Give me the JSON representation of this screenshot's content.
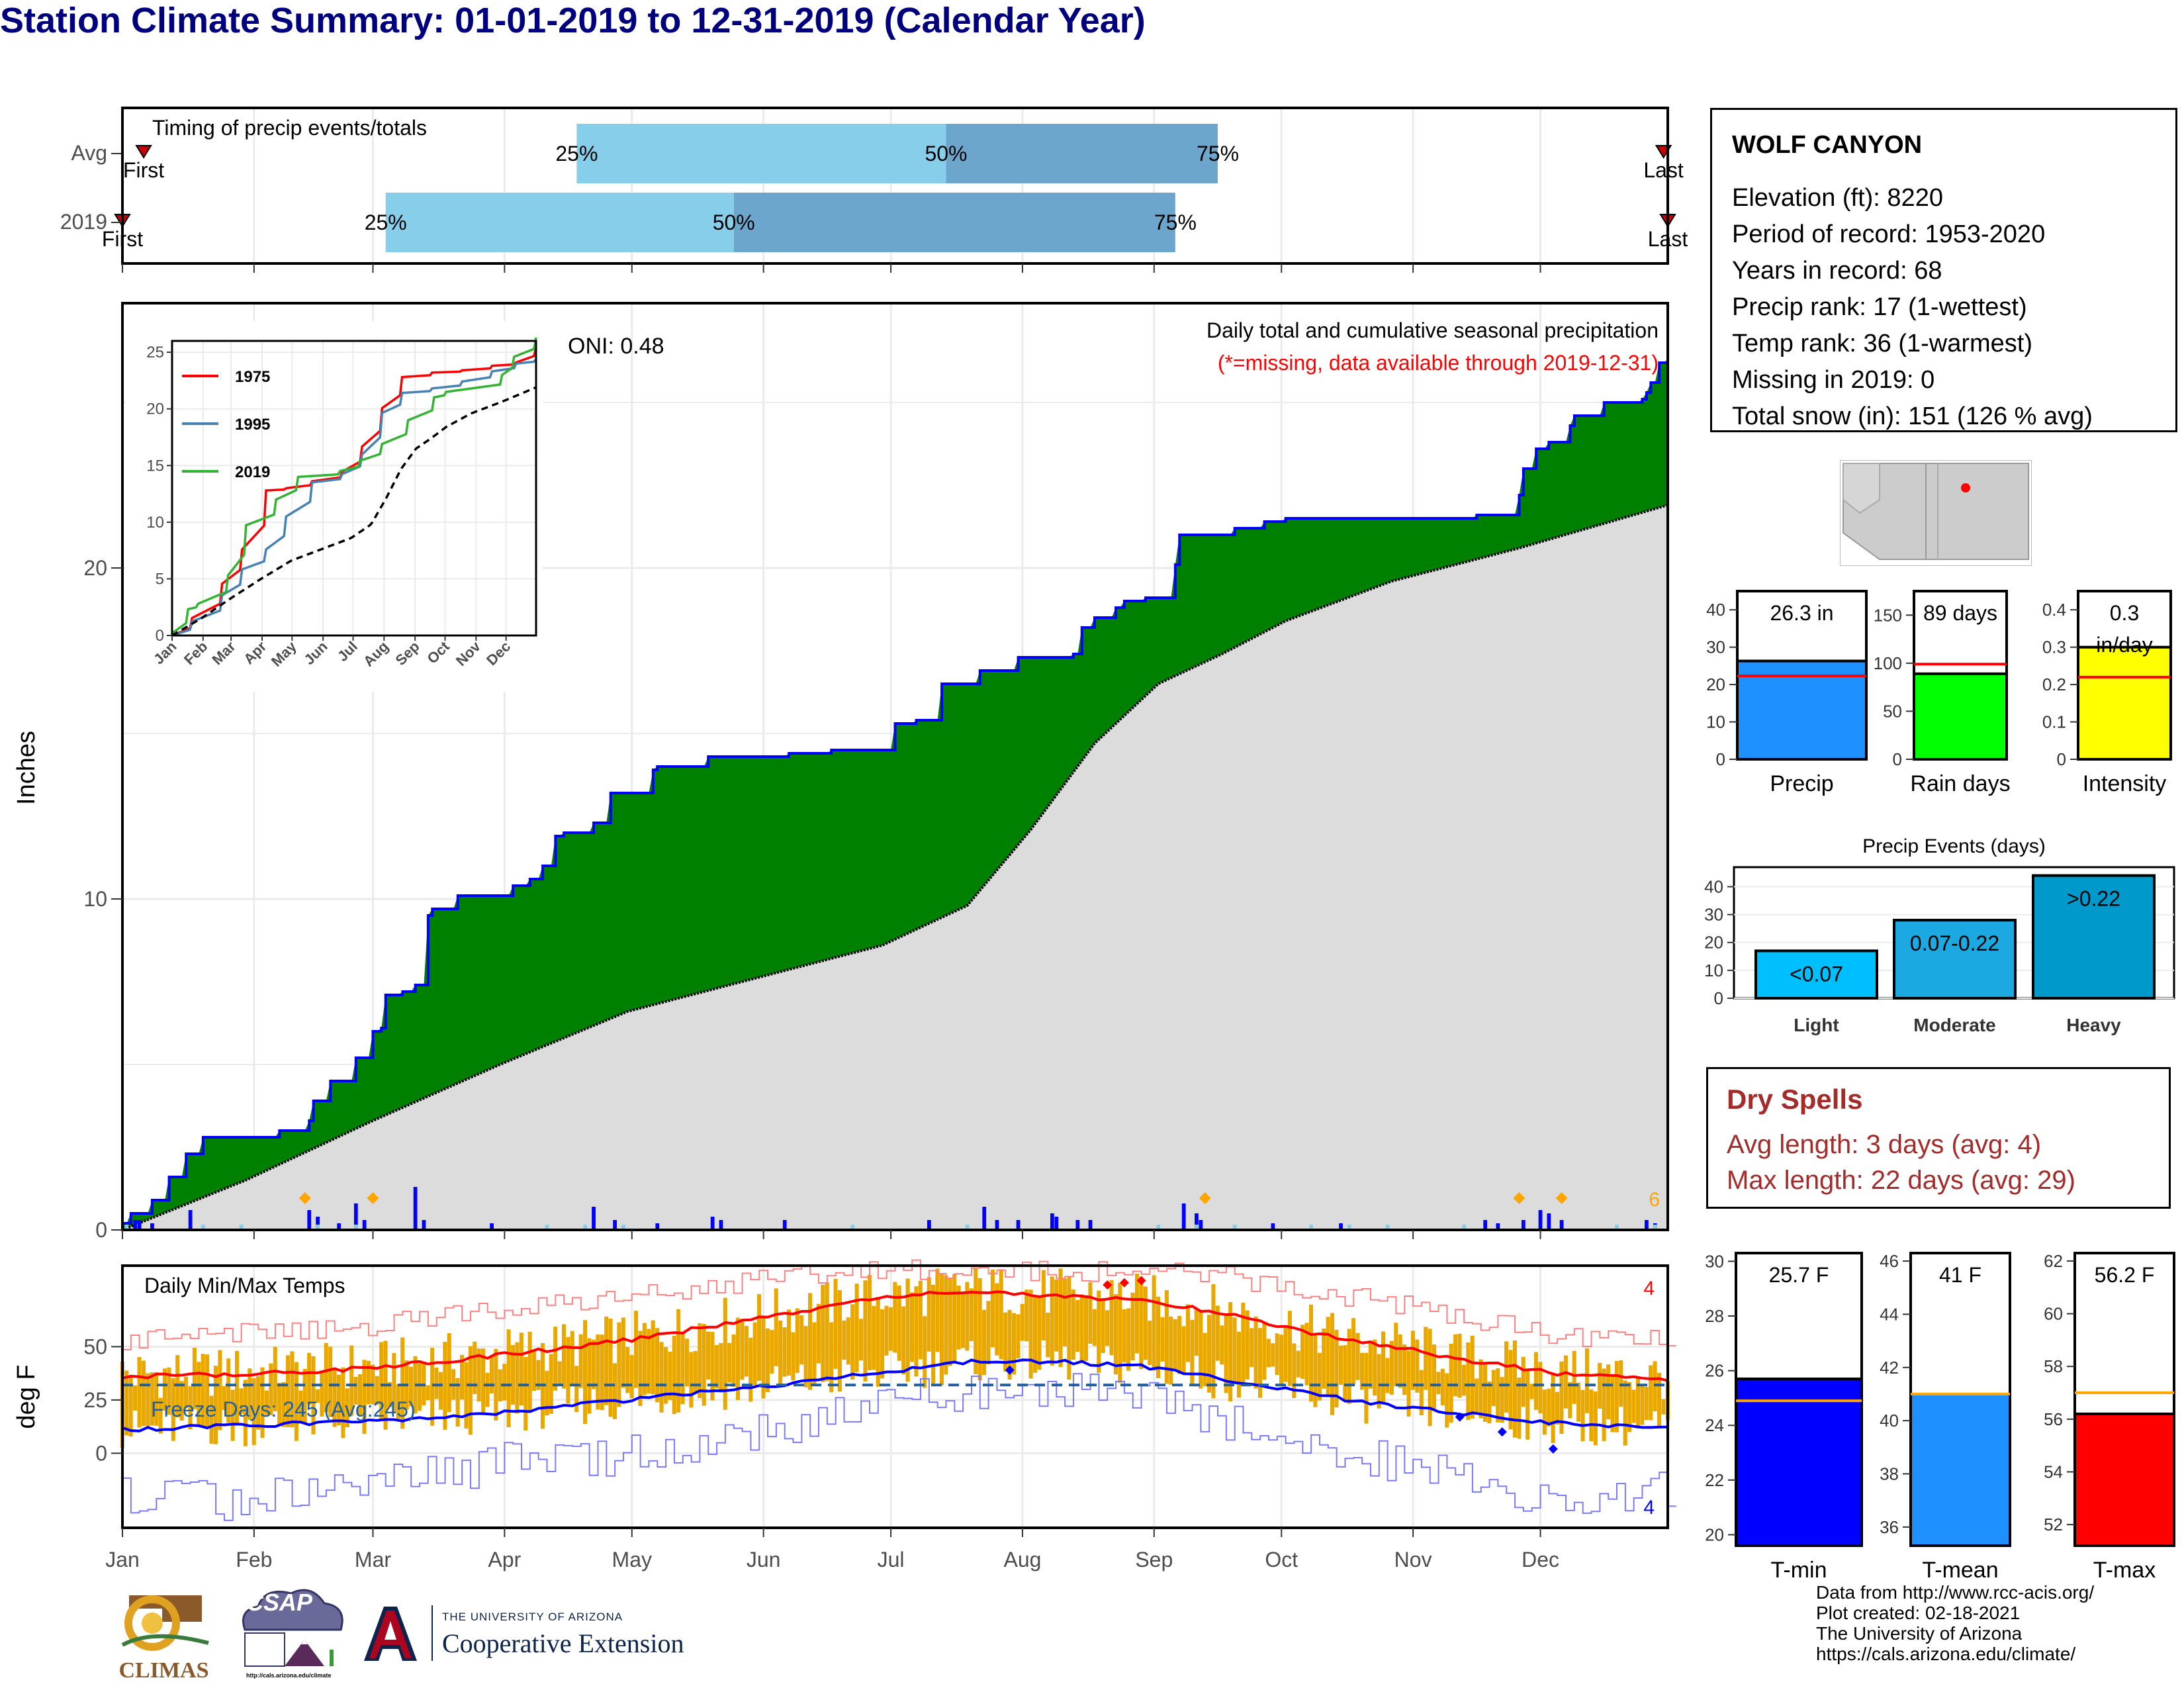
{
  "title": "Station Climate Summary: 01-01-2019 to 12-31-2019 (Calendar Year)",
  "station": {
    "name": "WOLF CANYON",
    "lines": [
      "Elevation (ft): 8220",
      "Period of record: 1953-2020",
      "Years in record: 68",
      "Precip rank: 17 (1-wettest)",
      "Temp rank: 36 (1-warmest)",
      "Missing in 2019: 0",
      "Total snow (in): 151 (126 % avg)"
    ]
  },
  "dry_spells": {
    "title": "Dry Spells",
    "avg": "Avg length: 3 days (avg: 4)",
    "max": "Max length: 22 days (avg: 29)"
  },
  "credits": {
    "line1": "Data from http://www.rcc-acis.org/",
    "line2": "Plot created: 02-18-2021",
    "line3": "The University of Arizona",
    "line4": "https://cals.arizona.edu/climate/"
  },
  "logos": {
    "climas": "CLIMAS",
    "csap": "CSAP",
    "csap_url": "http://cals.arizona.edu/climate",
    "ua_small": "THE UNIVERSITY OF ARIZONA",
    "ua_big": "Cooperative Extension"
  },
  "colors": {
    "navy_title": "#00007f",
    "green_fill": "#008000",
    "blue_line": "#0000ff",
    "light_blue": "#87ceeb",
    "mid_blue": "#6ca6cd",
    "gray_fill": "#dcdcdc",
    "orange": "#ffa500",
    "gold_bar": "#e8a800",
    "red": "#ff0000"
  },
  "chart_data": [
    {
      "id": "timing",
      "type": "bar",
      "title": "Timing of precip events/totals",
      "ylabels": [
        "Avg",
        "2019"
      ],
      "rows": [
        {
          "label": "Avg",
          "q25": "2019-04-18",
          "q50": "2019-07-14",
          "q75": "2019-09-16",
          "first": "2019-01-06",
          "last": "2019-12-30"
        },
        {
          "label": "2019",
          "q25": "2019-03-04",
          "q50": "2019-05-25",
          "q75": "2019-09-06",
          "first": "2019-01-01",
          "last": "2019-12-31"
        }
      ],
      "quantile_labels": [
        "25%",
        "50%",
        "75%"
      ],
      "first_label": "First",
      "last_label": "Last"
    },
    {
      "id": "precip",
      "type": "area",
      "ylabel": "Inches",
      "yticks": [
        0,
        10,
        20
      ],
      "ylim": [
        0,
        28
      ],
      "xticks": [
        "Jan",
        "Feb",
        "Mar",
        "Apr",
        "May",
        "Jun",
        "Jul",
        "Aug",
        "Sep",
        "Oct",
        "Nov",
        "Dec"
      ],
      "caption": "Daily total and cumulative seasonal precipitation",
      "caption2": "(*=missing, data available through 2019-12-31)",
      "oni": "ONI: 0.48",
      "corner_count": "6",
      "series": [
        {
          "name": "2019 cumulative",
          "x": [
            1,
            3,
            8,
            12,
            16,
            20,
            27,
            38,
            45,
            46,
            50,
            56,
            60,
            62,
            63,
            67,
            70,
            73,
            74,
            75,
            80,
            93,
            97,
            100,
            103,
            105,
            112,
            116,
            126,
            127,
            137,
            139,
            150,
            158,
            168,
            183,
            188,
            194,
            203,
            211,
            212,
            225,
            227,
            230,
            235,
            237,
            242,
            249,
            250,
            262,
            263,
            270,
            275,
            320,
            330,
            331,
            334,
            337,
            342,
            343,
            350,
            359,
            360,
            361,
            363,
            365
          ],
          "y": [
            0.2,
            0.5,
            0.9,
            1.6,
            2.3,
            2.8,
            2.8,
            3.0,
            3.3,
            3.9,
            4.5,
            5.2,
            6.0,
            6.1,
            7.1,
            7.2,
            7.4,
            9.5,
            9.7,
            9.7,
            10.1,
            10.4,
            10.6,
            11.0,
            11.9,
            12.0,
            12.3,
            13.2,
            13.9,
            14.0,
            14.0,
            14.3,
            14.3,
            14.4,
            14.5,
            15.3,
            15.4,
            16.5,
            16.9,
            16.9,
            17.3,
            17.4,
            18.2,
            18.5,
            18.8,
            19.0,
            19.1,
            20.1,
            21.0,
            21.0,
            21.2,
            21.4,
            21.5,
            21.6,
            22.2,
            23.0,
            23.6,
            23.8,
            24.3,
            24.6,
            25.0,
            25.1,
            25.3,
            25.6,
            26.2,
            26.3
          ]
        },
        {
          "name": "Average cumulative",
          "x": [
            1,
            30,
            60,
            90,
            120,
            150,
            180,
            200,
            215,
            230,
            245,
            260,
            275,
            300,
            330,
            365
          ],
          "y": [
            0.0,
            1.5,
            3.3,
            5.0,
            6.6,
            7.6,
            8.6,
            9.8,
            12.1,
            14.7,
            16.5,
            17.4,
            18.4,
            19.6,
            20.6,
            21.9
          ]
        }
      ],
      "daily_bars_in": [
        [
          4,
          0.3
        ],
        [
          5,
          0.3
        ],
        [
          8,
          0.2
        ],
        [
          17,
          0.6
        ],
        [
          45,
          0.6
        ],
        [
          47,
          0.4
        ],
        [
          52,
          0.2
        ],
        [
          56,
          0.8
        ],
        [
          58,
          0.3
        ],
        [
          70,
          1.3
        ],
        [
          72,
          0.3
        ],
        [
          88,
          0.2
        ],
        [
          112,
          0.7
        ],
        [
          117,
          0.3
        ],
        [
          127,
          0.2
        ],
        [
          140,
          0.4
        ],
        [
          142,
          0.3
        ],
        [
          157,
          0.3
        ],
        [
          191,
          0.3
        ],
        [
          204,
          0.7
        ],
        [
          207,
          0.3
        ],
        [
          212,
          0.3
        ],
        [
          220,
          0.5
        ],
        [
          221,
          0.4
        ],
        [
          226,
          0.3
        ],
        [
          229,
          0.3
        ],
        [
          251,
          0.8
        ],
        [
          254,
          0.5
        ],
        [
          255,
          0.3
        ],
        [
          272,
          0.2
        ],
        [
          288,
          0.2
        ],
        [
          322,
          0.3
        ],
        [
          325,
          0.2
        ],
        [
          331,
          0.3
        ],
        [
          335,
          0.6
        ],
        [
          337,
          0.5
        ],
        [
          340,
          0.3
        ],
        [
          360,
          0.3
        ],
        [
          362,
          0.2
        ]
      ],
      "snow_markers": [
        44,
        60,
        256,
        330,
        340
      ]
    },
    {
      "id": "inset",
      "type": "line",
      "xticks": [
        "Jan",
        "Feb",
        "Mar",
        "Apr",
        "May",
        "Jun",
        "Jul",
        "Aug",
        "Sep",
        "Oct",
        "Nov",
        "Dec"
      ],
      "yticks": [
        0,
        5,
        10,
        15,
        20,
        25
      ],
      "ylim": [
        0,
        26
      ],
      "series": [
        {
          "name": "1975",
          "color": "#ff0000",
          "x": [
            1,
            20,
            50,
            70,
            95,
            115,
            140,
            170,
            190,
            210,
            230,
            260,
            290,
            320,
            345,
            365
          ],
          "y": [
            0,
            1.5,
            4.5,
            7.5,
            12.8,
            13.0,
            13.6,
            14.4,
            16.6,
            20.0,
            22.8,
            23.2,
            23.4,
            23.8,
            24.1,
            25.5
          ]
        },
        {
          "name": "1995",
          "color": "#4682b4",
          "x": [
            1,
            20,
            50,
            70,
            95,
            115,
            140,
            170,
            190,
            210,
            230,
            260,
            290,
            320,
            345,
            365
          ],
          "y": [
            0,
            1.2,
            3.5,
            5.8,
            7.6,
            10.5,
            13.5,
            14.2,
            15.9,
            19.6,
            21.4,
            21.8,
            22.4,
            23.3,
            24.0,
            24.4
          ]
        },
        {
          "name": "2019",
          "color": "#32b432",
          "x": [
            1,
            16,
            27,
            56,
            74,
            105,
            127,
            168,
            188,
            211,
            237,
            262,
            275,
            331,
            343,
            365
          ],
          "y": [
            0.2,
            2.3,
            2.8,
            5.2,
            9.7,
            12.0,
            14.0,
            14.5,
            15.4,
            16.9,
            19.0,
            21.0,
            21.5,
            23.0,
            24.6,
            26.3
          ]
        },
        {
          "name": "avg",
          "color": "#000000",
          "x": [
            1,
            30,
            60,
            90,
            120,
            150,
            180,
            200,
            215,
            230,
            245,
            260,
            275,
            300,
            330,
            365
          ],
          "y": [
            0.0,
            1.5,
            3.3,
            5.0,
            6.6,
            7.6,
            8.6,
            9.8,
            12.1,
            14.7,
            16.5,
            17.4,
            18.4,
            19.6,
            20.6,
            21.9
          ]
        }
      ]
    },
    {
      "id": "temps",
      "type": "line",
      "title": "Daily Min/Max Temps",
      "ylabel": "deg F",
      "yticks": [
        0,
        25,
        50
      ],
      "ylim": [
        -35,
        88
      ],
      "freeze_label": "Freeze Days: 245 (Avg:245)",
      "freeze_line": 32,
      "corner_top": "4",
      "corner_bottom": "4",
      "series": [
        {
          "name": "Avg max",
          "color": "#ff0000",
          "x": [
            1,
            30,
            60,
            90,
            120,
            150,
            180,
            200,
            220,
            240,
            260,
            280,
            300,
            320,
            340,
            365
          ],
          "y": [
            36,
            37,
            40,
            46,
            53,
            63,
            73,
            76,
            74,
            72,
            66,
            57,
            50,
            43,
            37,
            35
          ]
        },
        {
          "name": "Avg min",
          "color": "#0000ff",
          "x": [
            1,
            30,
            60,
            90,
            120,
            150,
            180,
            200,
            220,
            240,
            260,
            280,
            300,
            320,
            340,
            365
          ],
          "y": [
            11,
            13,
            15,
            19,
            25,
            31,
            38,
            43,
            43,
            41,
            35,
            28,
            22,
            18,
            14,
            12
          ]
        },
        {
          "name": "Record max",
          "color": "#ff6666",
          "x": [
            1,
            30,
            60,
            90,
            120,
            150,
            180,
            200,
            220,
            240,
            260,
            280,
            300,
            320,
            340,
            365
          ],
          "y": [
            52,
            56,
            60,
            67,
            74,
            81,
            87,
            86,
            85,
            86,
            83,
            77,
            70,
            63,
            55,
            54
          ]
        },
        {
          "name": "Record min",
          "color": "#6666ff",
          "x": [
            1,
            30,
            60,
            90,
            120,
            150,
            180,
            200,
            220,
            240,
            260,
            280,
            300,
            320,
            340,
            365
          ],
          "y": [
            -18,
            -24,
            -13,
            -5,
            0,
            10,
            24,
            30,
            31,
            28,
            16,
            3,
            -4,
            -12,
            -22,
            -15
          ]
        }
      ]
    },
    {
      "id": "precip_totals",
      "type": "bar",
      "categories": [
        "Precip",
        "Rain days",
        "Intensity"
      ],
      "panels": [
        {
          "label": "Precip",
          "value": 26.3,
          "avg": 22.3,
          "ylim": [
            0,
            45
          ],
          "yticks": [
            0,
            10,
            20,
            30,
            40
          ],
          "text": "26.3 in",
          "color": "#1e90ff"
        },
        {
          "label": "Rain days",
          "value": 89,
          "avg": 99,
          "ylim": [
            0,
            175
          ],
          "yticks": [
            0,
            50,
            100,
            150
          ],
          "text": "89 days",
          "color": "#00ff00"
        },
        {
          "label": "Intensity",
          "value": 0.3,
          "avg": 0.22,
          "ylim": [
            0,
            0.45
          ],
          "yticks": [
            0.0,
            0.1,
            0.2,
            0.3,
            0.4
          ],
          "text": "0.3",
          "text2": "in/day",
          "color": "#ffff00"
        }
      ]
    },
    {
      "id": "precip_events",
      "type": "bar",
      "title": "Precip Events (days)",
      "categories": [
        "Light",
        "Moderate",
        "Heavy"
      ],
      "values": [
        17,
        28,
        44
      ],
      "bar_labels": [
        "<0.07",
        "0.07-0.22",
        ">0.22"
      ],
      "ylim": [
        0,
        47
      ],
      "yticks": [
        0,
        10,
        20,
        30,
        40
      ]
    },
    {
      "id": "temp_totals",
      "type": "bar",
      "categories": [
        "T-min",
        "T-mean",
        "T-max"
      ],
      "panels": [
        {
          "label": "T-min",
          "value": 25.7,
          "avg": 24.9,
          "ylim": [
            19.6,
            30.3
          ],
          "yticks": [
            20,
            22,
            24,
            26,
            28,
            30
          ],
          "text": "25.7 F",
          "color": "#0000ff"
        },
        {
          "label": "T-mean",
          "value": 41,
          "avg": 41.0,
          "ylim": [
            35.3,
            46.3
          ],
          "yticks": [
            36,
            38,
            40,
            42,
            44,
            46
          ],
          "text": "41 F",
          "color": "#1e90ff"
        },
        {
          "label": "T-max",
          "value": 56.2,
          "avg": 57.0,
          "ylim": [
            51.2,
            62.3
          ],
          "yticks": [
            52,
            54,
            56,
            58,
            60,
            62
          ],
          "text": "56.2 F",
          "color": "#ff0000"
        }
      ]
    }
  ]
}
